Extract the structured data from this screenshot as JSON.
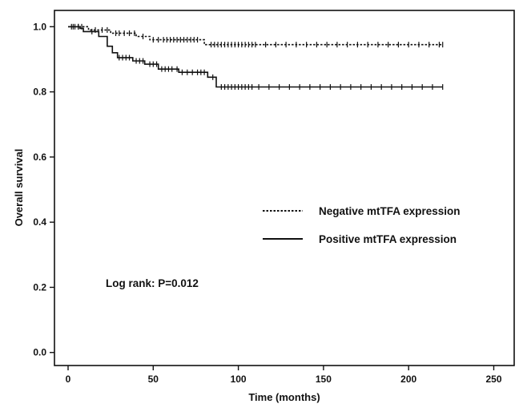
{
  "chart_data": {
    "type": "line",
    "subtype": "kaplan-meier",
    "title": "",
    "xlabel": "Time (months)",
    "ylabel": "Overall survival",
    "xlim": [
      -8,
      262
    ],
    "ylim": [
      -0.04,
      1.05
    ],
    "x_ticks": [
      0,
      50,
      100,
      150,
      200,
      250
    ],
    "x_tick_labels": [
      "0",
      "50",
      "100",
      "150",
      "200",
      "250"
    ],
    "y_ticks": [
      0.0,
      0.2,
      0.4,
      0.6,
      0.8,
      1.0
    ],
    "y_tick_labels": [
      "0.0",
      "0.2",
      "0.4",
      "0.6",
      "0.8",
      "1.0"
    ],
    "grid": false,
    "legend_position": "center-right",
    "annotation": "Log rank: P=0.012",
    "series": [
      {
        "name": "Negative mtTFA expression",
        "line_style": "dotted",
        "color": "#111111",
        "steps": [
          [
            0,
            1.0
          ],
          [
            12,
            0.99
          ],
          [
            25,
            0.98
          ],
          [
            40,
            0.97
          ],
          [
            48,
            0.96
          ],
          [
            80,
            0.945
          ],
          [
            220,
            0.945
          ]
        ],
        "censor_times": [
          2,
          4,
          6,
          8,
          16,
          20,
          23,
          28,
          30,
          33,
          36,
          39,
          44,
          50,
          53,
          56,
          58,
          60,
          62,
          64,
          66,
          68,
          70,
          72,
          74,
          76,
          84,
          86,
          88,
          90,
          92,
          94,
          96,
          98,
          100,
          102,
          104,
          106,
          108,
          110,
          116,
          122,
          128,
          134,
          140,
          146,
          152,
          158,
          164,
          170,
          176,
          182,
          188,
          194,
          200,
          206,
          212,
          218,
          220
        ]
      },
      {
        "name": "Positive mtTFA expression",
        "line_style": "solid",
        "color": "#111111",
        "steps": [
          [
            0,
            1.0
          ],
          [
            7,
            0.995
          ],
          [
            9,
            0.985
          ],
          [
            18,
            0.97
          ],
          [
            23,
            0.94
          ],
          [
            26,
            0.92
          ],
          [
            29,
            0.905
          ],
          [
            38,
            0.895
          ],
          [
            45,
            0.885
          ],
          [
            53,
            0.87
          ],
          [
            65,
            0.86
          ],
          [
            82,
            0.845
          ],
          [
            87,
            0.815
          ],
          [
            220,
            0.815
          ]
        ],
        "censor_times": [
          3,
          6,
          14,
          30,
          32,
          34,
          36,
          40,
          42,
          44,
          48,
          50,
          52,
          55,
          57,
          59,
          61,
          64,
          67,
          70,
          73,
          76,
          78,
          80,
          85,
          90,
          92,
          94,
          96,
          98,
          100,
          102,
          104,
          106,
          108,
          112,
          118,
          124,
          130,
          136,
          142,
          148,
          154,
          160,
          166,
          172,
          178,
          184,
          190,
          196,
          202,
          208,
          214,
          220
        ]
      }
    ]
  }
}
